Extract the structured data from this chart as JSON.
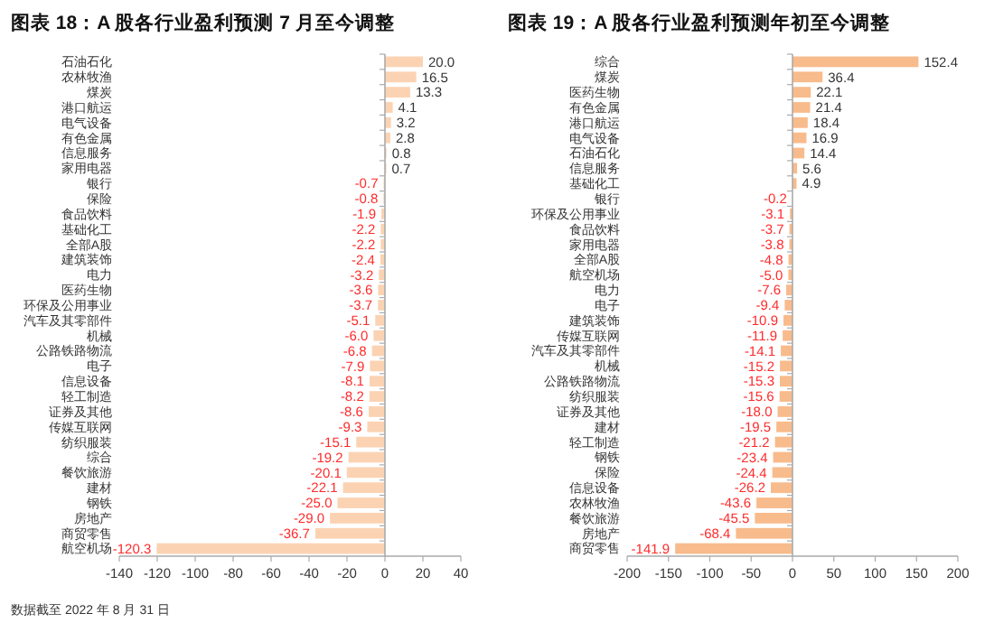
{
  "chart_data": [
    {
      "type": "bar",
      "orientation": "horizontal",
      "title": "图表 18：A 股各行业盈利预测 7 月至今调整",
      "categories": [
        "石油石化",
        "农林牧渔",
        "煤炭",
        "港口航运",
        "电气设备",
        "有色金属",
        "信息服务",
        "家用电器",
        "银行",
        "保险",
        "食品饮料",
        "基础化工",
        "全部A股",
        "建筑装饰",
        "电力",
        "医药生物",
        "环保及公用事业",
        "汽车及其零部件",
        "机械",
        "公路铁路物流",
        "电子",
        "信息设备",
        "轻工制造",
        "证券及其他",
        "传媒互联网",
        "纺织服装",
        "综合",
        "餐饮旅游",
        "建材",
        "钢铁",
        "房地产",
        "商贸零售",
        "航空机场"
      ],
      "values": [
        20.0,
        16.5,
        13.3,
        4.1,
        3.2,
        2.8,
        0.8,
        0.7,
        -0.7,
        -0.8,
        -1.9,
        -2.2,
        -2.2,
        -2.4,
        -3.2,
        -3.6,
        -3.7,
        -5.1,
        -6.0,
        -6.8,
        -7.9,
        -8.1,
        -8.2,
        -8.6,
        -9.3,
        -15.1,
        -19.2,
        -20.1,
        -22.1,
        -25.0,
        -29.0,
        -36.7,
        -120.3
      ],
      "value_labels": [
        "20.0",
        "16.5",
        "13.3",
        "4.1",
        "3.2",
        "2.8",
        "0.8",
        "0.7",
        "-0.7",
        "-0.8",
        "-1.9",
        "-2.2",
        "-2.2",
        "-2.4",
        "-3.2",
        "-3.6",
        "-3.7",
        "-5.1",
        "-6.0",
        "-6.8",
        "-7.9",
        "-8.1",
        "-8.2",
        "-8.6",
        "-9.3",
        "-15.1",
        "-19.2",
        "-20.1",
        "-22.1",
        "-25.0",
        "-29.0",
        "-36.7",
        "-120.3"
      ],
      "color": "#fbd3b3",
      "xlim": [
        -140,
        40
      ],
      "xticks": [
        -140,
        -120,
        -100,
        -80,
        -60,
        -40,
        -20,
        0,
        20,
        40
      ],
      "annotations": [
        "数据截至 2022 年 8 月 31 日"
      ]
    },
    {
      "type": "bar",
      "orientation": "horizontal",
      "title": "图表 19：A 股各行业盈利预测年初至今调整",
      "categories": [
        "综合",
        "煤炭",
        "医药生物",
        "有色金属",
        "港口航运",
        "电气设备",
        "石油石化",
        "信息服务",
        "基础化工",
        "银行",
        "环保及公用事业",
        "食品饮料",
        "家用电器",
        "全部A股",
        "航空机场",
        "电力",
        "电子",
        "建筑装饰",
        "传媒互联网",
        "汽车及其零部件",
        "机械",
        "公路铁路物流",
        "纺织服装",
        "证券及其他",
        "建材",
        "轻工制造",
        "钢铁",
        "保险",
        "信息设备",
        "农林牧渔",
        "餐饮旅游",
        "房地产",
        "商贸零售"
      ],
      "values": [
        152.4,
        36.4,
        22.1,
        21.4,
        18.4,
        16.9,
        14.4,
        5.6,
        4.9,
        -0.2,
        -3.1,
        -3.7,
        -3.8,
        -4.8,
        -5.0,
        -7.6,
        -9.4,
        -10.9,
        -11.9,
        -14.1,
        -15.2,
        -15.3,
        -15.6,
        -18.0,
        -19.5,
        -21.2,
        -23.4,
        -24.4,
        -26.2,
        -43.6,
        -45.5,
        -68.4,
        -141.9
      ],
      "value_labels": [
        "152.4",
        "36.4",
        "22.1",
        "21.4",
        "18.4",
        "16.9",
        "14.4",
        "5.6",
        "4.9",
        "-0.2",
        "-3.1",
        "-3.7",
        "-3.8",
        "-4.8",
        "-5.0",
        "-7.6",
        "-9.4",
        "-10.9",
        "-11.9",
        "-14.1",
        "-15.2",
        "-15.3",
        "-15.6",
        "-18.0",
        "-19.5",
        "-21.2",
        "-23.4",
        "-24.4",
        "-26.2",
        "-43.6",
        "-45.5",
        "-68.4",
        "-141.9"
      ],
      "color": "#f8bb8c",
      "xlim": [
        -200,
        200
      ],
      "xticks": [
        -200,
        -150,
        -100,
        -50,
        0,
        50,
        100,
        150,
        200
      ]
    }
  ]
}
